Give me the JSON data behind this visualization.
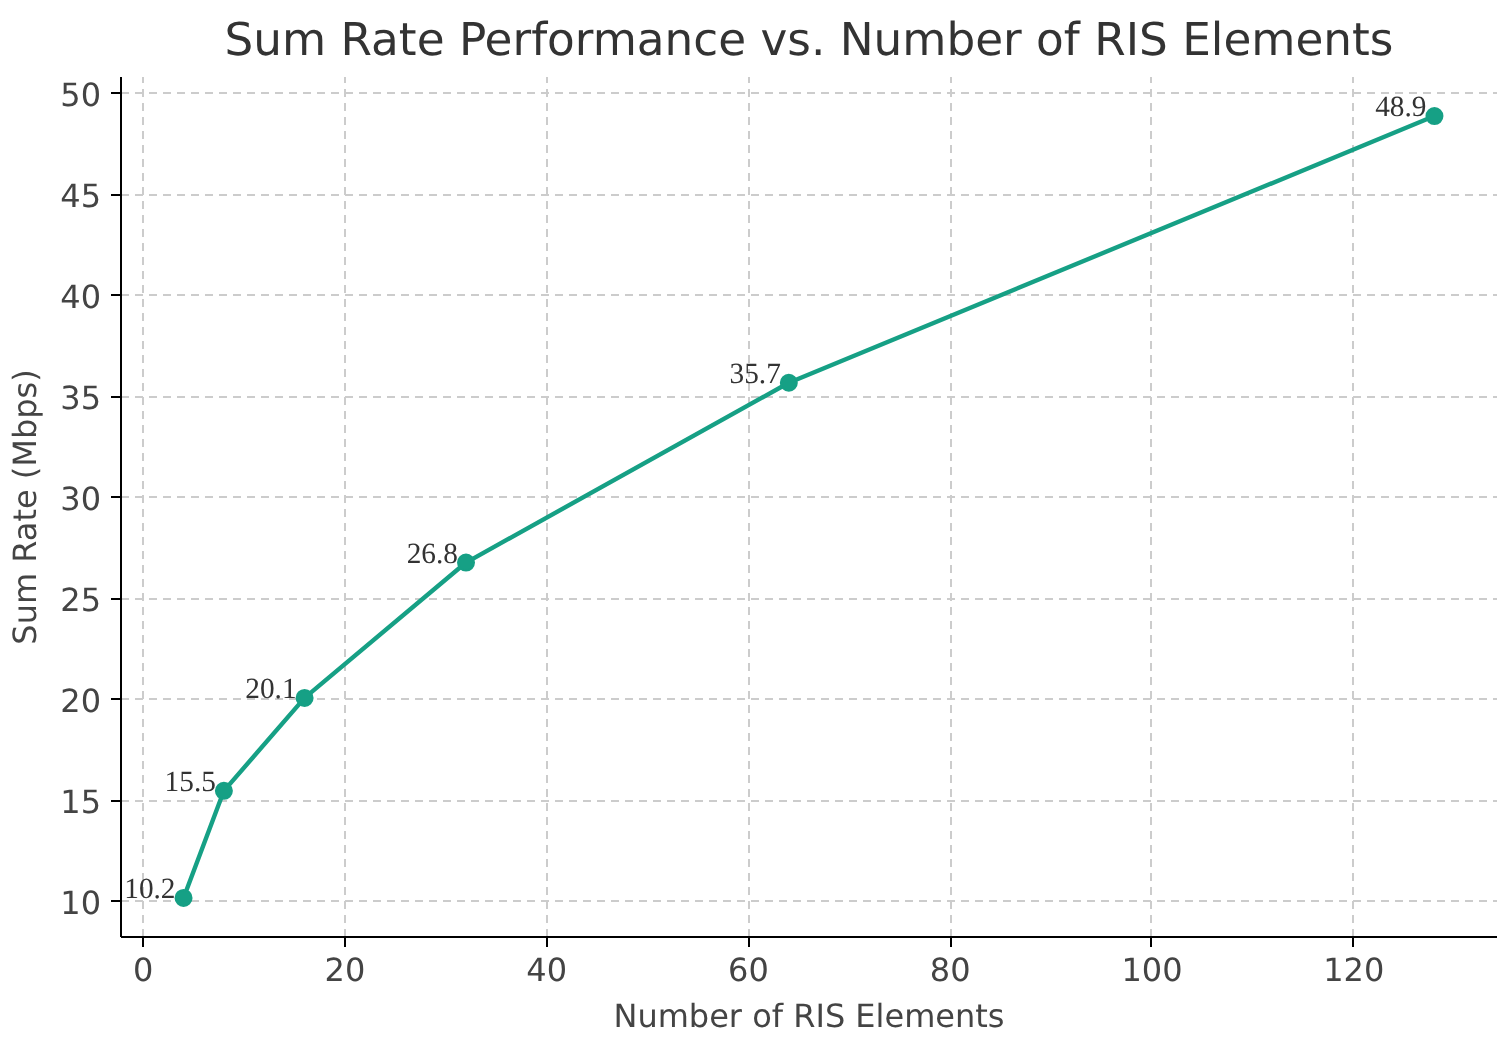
{
  "chart_data": {
    "type": "line",
    "title": "Sum Rate Performance vs. Number of RIS Elements",
    "xlabel": "Number of RIS Elements",
    "ylabel": "Sum Rate (Mbps)",
    "x": [
      4,
      8,
      16,
      32,
      64,
      128
    ],
    "series": [
      {
        "color": "#16a085",
        "values": [
          10.2,
          15.5,
          20.1,
          26.8,
          35.7,
          48.9
        ]
      }
    ],
    "xlim": [
      -2.2,
      134.2
    ],
    "ylim": [
      8.265,
      50.835
    ],
    "xticks": [
      0,
      20,
      40,
      60,
      80,
      100,
      120
    ],
    "yticks": [
      10,
      15,
      20,
      25,
      30,
      35,
      40,
      45,
      50
    ],
    "grid": true,
    "marker": "circle",
    "line_style": "solid",
    "data_labels": true
  }
}
